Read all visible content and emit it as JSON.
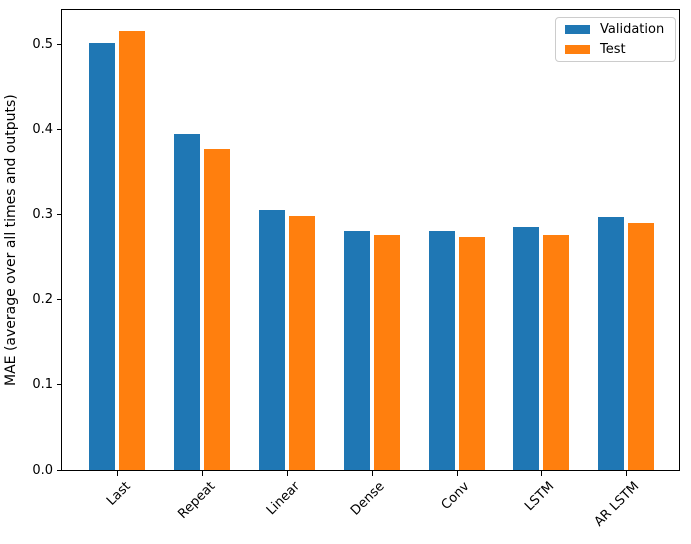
{
  "chart_data": {
    "type": "bar",
    "title": "",
    "xlabel": "",
    "ylabel": "MAE (average over all times and outputs)",
    "categories": [
      "Last",
      "Repeat",
      "Linear",
      "Dense",
      "Conv",
      "LSTM",
      "AR LSTM"
    ],
    "series": [
      {
        "name": "Validation",
        "color": "#1f77b4",
        "values": [
          0.501,
          0.395,
          0.305,
          0.28,
          0.28,
          0.285,
          0.297
        ]
      },
      {
        "name": "Test",
        "color": "#ff7f0e",
        "values": [
          0.515,
          0.377,
          0.298,
          0.276,
          0.273,
          0.276,
          0.29
        ]
      }
    ],
    "yticks": [
      0.0,
      0.1,
      0.2,
      0.3,
      0.4,
      0.5
    ],
    "ylim": [
      0,
      0.54
    ],
    "x_tick_rotation": 45,
    "grid": false,
    "legend_position": "upper right"
  }
}
